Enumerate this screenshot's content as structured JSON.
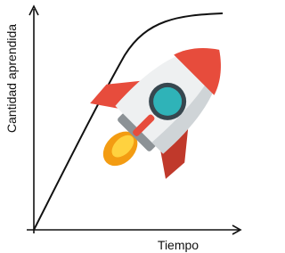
{
  "axes": {
    "y_label": "Cantidad aprendida",
    "x_label": "Tiempo"
  }
}
